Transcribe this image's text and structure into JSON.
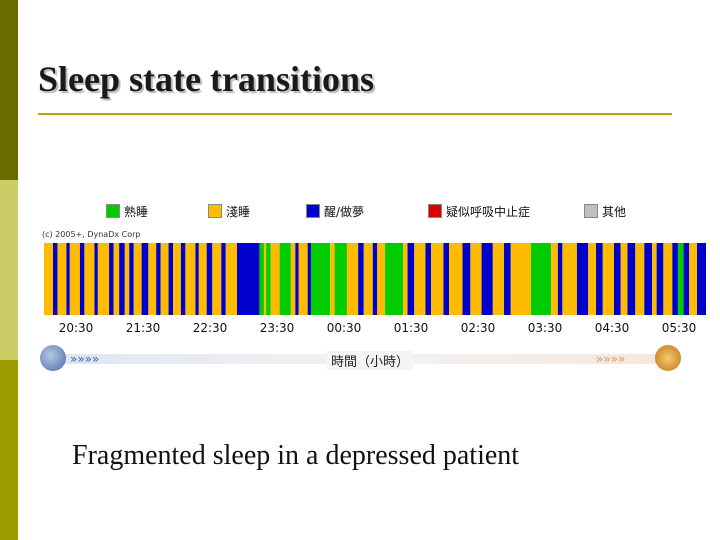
{
  "slide": {
    "title": "Sleep state transitions",
    "caption": "Fragmented sleep in a depressed patient",
    "colors": {
      "sidebar_top": "#6b6b00",
      "sidebar_mid": "#cccc66",
      "sidebar_bottom": "#9c9c00",
      "rule": "#b8a41c"
    }
  },
  "chart": {
    "copyright": "(c) 2005+, DynaDx Corp",
    "legend": [
      {
        "label": "熟睡",
        "color": "#00cc00"
      },
      {
        "label": "淺睡",
        "color": "#ffbb00"
      },
      {
        "label": "醒/做夢",
        "color": "#0000cc"
      },
      {
        "label": "疑似呼吸中止症",
        "color": "#dd0000"
      },
      {
        "label": "其他",
        "color": "#c0c0c0"
      }
    ],
    "time_ticks": [
      "20:30",
      "21:30",
      "22:30",
      "23:30",
      "00:30",
      "01:30",
      "02:30",
      "03:30",
      "04:30",
      "05:30"
    ],
    "axis_label": "時間（小時）",
    "icons": {
      "start": "moon-icon",
      "end": "sun-icon",
      "arrows": "chevron-arrows-icon"
    }
  },
  "chart_data": {
    "type": "timeline",
    "x_unit": "clock time",
    "x_start": "20:00",
    "x_end": "05:50",
    "states": [
      "熟睡",
      "淺睡",
      "醒/做夢",
      "疑似呼吸中止症",
      "其他"
    ],
    "segments": [
      [
        "20:00",
        "20:08",
        1
      ],
      [
        "20:08",
        "20:12",
        2
      ],
      [
        "20:12",
        "20:20",
        1
      ],
      [
        "20:20",
        "20:23",
        2
      ],
      [
        "20:23",
        "20:32",
        1
      ],
      [
        "20:32",
        "20:36",
        2
      ],
      [
        "20:36",
        "20:45",
        1
      ],
      [
        "20:45",
        "20:48",
        2
      ],
      [
        "20:48",
        "20:58",
        1
      ],
      [
        "20:58",
        "21:02",
        2
      ],
      [
        "21:02",
        "21:07",
        1
      ],
      [
        "21:07",
        "21:12",
        2
      ],
      [
        "21:12",
        "21:16",
        1
      ],
      [
        "21:16",
        "21:20",
        2
      ],
      [
        "21:20",
        "21:27",
        1
      ],
      [
        "21:27",
        "21:33",
        2
      ],
      [
        "21:33",
        "21:40",
        1
      ],
      [
        "21:40",
        "21:44",
        2
      ],
      [
        "21:44",
        "21:51",
        1
      ],
      [
        "21:51",
        "21:55",
        2
      ],
      [
        "21:55",
        "22:02",
        1
      ],
      [
        "22:02",
        "22:06",
        2
      ],
      [
        "22:06",
        "22:15",
        1
      ],
      [
        "22:15",
        "22:18",
        2
      ],
      [
        "22:18",
        "22:25",
        1
      ],
      [
        "22:25",
        "22:30",
        2
      ],
      [
        "22:30",
        "22:38",
        1
      ],
      [
        "22:38",
        "22:42",
        2
      ],
      [
        "22:42",
        "22:52",
        1
      ],
      [
        "22:52",
        "23:12",
        2
      ],
      [
        "23:12",
        "23:16",
        0
      ],
      [
        "23:16",
        "23:18",
        1
      ],
      [
        "23:18",
        "23:22",
        0
      ],
      [
        "23:22",
        "23:30",
        1
      ],
      [
        "23:30",
        "23:40",
        0
      ],
      [
        "23:40",
        "23:44",
        1
      ],
      [
        "23:44",
        "23:47",
        2
      ],
      [
        "23:47",
        "23:55",
        1
      ],
      [
        "23:55",
        "23:58",
        2
      ],
      [
        "23:58",
        "00:15",
        0
      ],
      [
        "00:15",
        "00:19",
        1
      ],
      [
        "00:19",
        "00:30",
        0
      ],
      [
        "00:30",
        "00:40",
        1
      ],
      [
        "00:40",
        "00:45",
        2
      ],
      [
        "00:45",
        "00:53",
        1
      ],
      [
        "00:53",
        "00:57",
        2
      ],
      [
        "00:57",
        "01:04",
        1
      ],
      [
        "01:04",
        "01:20",
        0
      ],
      [
        "01:20",
        "01:24",
        1
      ],
      [
        "01:24",
        "01:30",
        2
      ],
      [
        "01:30",
        "01:40",
        1
      ],
      [
        "01:40",
        "01:45",
        2
      ],
      [
        "01:45",
        "01:56",
        1
      ],
      [
        "01:56",
        "02:01",
        2
      ],
      [
        "02:01",
        "02:13",
        1
      ],
      [
        "02:13",
        "02:20",
        2
      ],
      [
        "02:20",
        "02:30",
        1
      ],
      [
        "02:30",
        "02:40",
        2
      ],
      [
        "02:40",
        "02:50",
        1
      ],
      [
        "02:50",
        "02:56",
        2
      ],
      [
        "02:56",
        "03:14",
        1
      ],
      [
        "03:14",
        "03:32",
        0
      ],
      [
        "03:32",
        "03:38",
        1
      ],
      [
        "03:38",
        "03:42",
        2
      ],
      [
        "03:42",
        "03:55",
        1
      ],
      [
        "03:55",
        "04:05",
        2
      ],
      [
        "04:05",
        "04:12",
        1
      ],
      [
        "04:12",
        "04:18",
        2
      ],
      [
        "04:18",
        "04:28",
        1
      ],
      [
        "04:28",
        "04:34",
        2
      ],
      [
        "04:34",
        "04:40",
        1
      ],
      [
        "04:40",
        "04:47",
        2
      ],
      [
        "04:47",
        "04:55",
        1
      ],
      [
        "04:55",
        "05:02",
        2
      ],
      [
        "05:02",
        "05:06",
        1
      ],
      [
        "05:06",
        "05:12",
        2
      ],
      [
        "05:12",
        "05:20",
        1
      ],
      [
        "05:20",
        "05:25",
        2
      ],
      [
        "05:25",
        "05:30",
        0
      ],
      [
        "05:30",
        "05:35",
        2
      ],
      [
        "05:35",
        "05:42",
        1
      ],
      [
        "05:42",
        "05:50",
        2
      ]
    ]
  }
}
